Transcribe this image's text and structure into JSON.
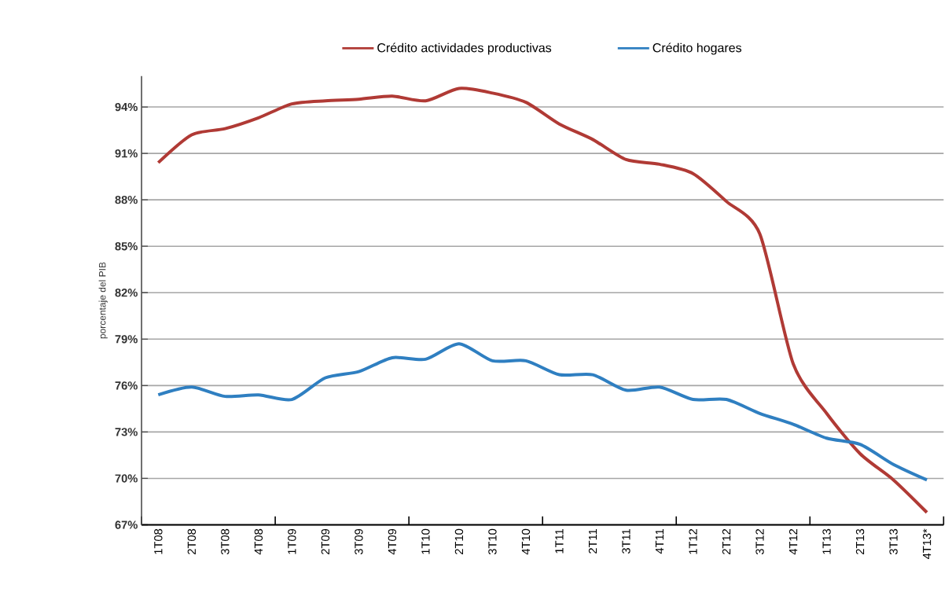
{
  "chart_data": {
    "type": "line",
    "ylabel": "porcentaje del PIB",
    "categories": [
      "1T08",
      "2T08",
      "3T08",
      "4T08",
      "1T09",
      "2T09",
      "3T09",
      "4T09",
      "1T10",
      "2T10",
      "3T10",
      "4T10",
      "1T11",
      "2T11",
      "3T11",
      "4T11",
      "1T12",
      "2T12",
      "3T12",
      "4T12",
      "1T13",
      "2T13",
      "3T13",
      "4T13*"
    ],
    "series": [
      {
        "name": "Crédito actividades productivas",
        "color": "#b03a35",
        "values": [
          90.4,
          92.2,
          92.6,
          93.3,
          94.2,
          94.4,
          94.5,
          94.7,
          94.4,
          95.2,
          94.9,
          94.3,
          92.9,
          91.9,
          90.6,
          90.3,
          89.7,
          87.9,
          85.8,
          77.4,
          74.2,
          71.6,
          69.9,
          67.8
        ]
      },
      {
        "name": "Crédito hogares",
        "color": "#2f7fc1",
        "values": [
          75.4,
          75.9,
          75.3,
          75.4,
          75.1,
          76.5,
          76.9,
          77.8,
          77.7,
          78.7,
          77.6,
          77.6,
          76.7,
          76.7,
          75.7,
          75.9,
          75.1,
          75.1,
          74.2,
          73.5,
          72.6,
          72.2,
          70.9,
          69.9
        ]
      }
    ],
    "ylim": [
      67,
      96
    ],
    "yticks": [
      {
        "value": 67,
        "label": "67%"
      },
      {
        "value": 70,
        "label": "70%"
      },
      {
        "value": 73,
        "label": "73%"
      },
      {
        "value": 76,
        "label": "76%"
      },
      {
        "value": 79,
        "label": "79%"
      },
      {
        "value": 82,
        "label": "82%"
      },
      {
        "value": 85,
        "label": "85%"
      },
      {
        "value": 88,
        "label": "88%"
      },
      {
        "value": 91,
        "label": "91%"
      },
      {
        "value": 94,
        "label": "94%"
      }
    ],
    "grid": "y",
    "legend": "top",
    "marker": "none",
    "line_style": "solid"
  }
}
